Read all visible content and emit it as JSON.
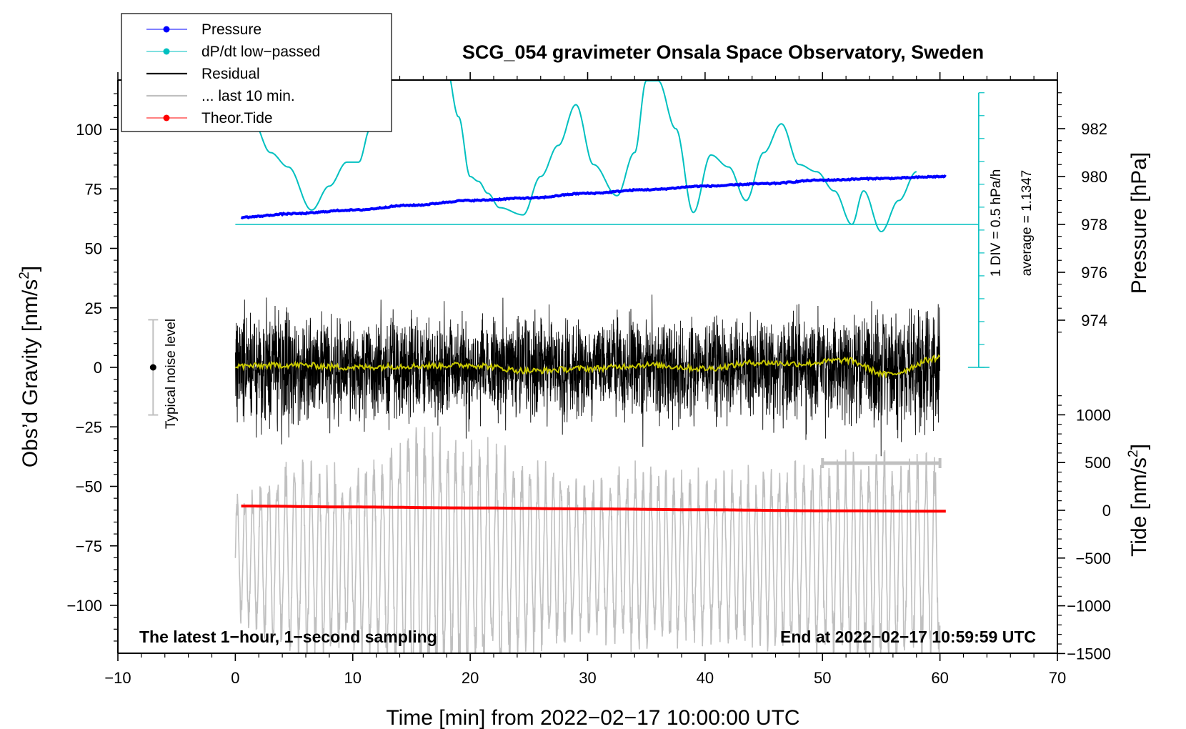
{
  "chart_data": {
    "type": "line",
    "title": "SCG_054 gravimeter Onsala Space Observatory, Sweden",
    "xlabel": "Time [min] from 2022−02−17 10:00:00 UTC",
    "xlim": [
      -10,
      70
    ],
    "x_ticks": [
      -10,
      0,
      10,
      20,
      30,
      40,
      50,
      60,
      70
    ],
    "x_tick_labels": [
      "−10",
      "0",
      "10",
      "20",
      "30",
      "40",
      "50",
      "60",
      "70"
    ],
    "left_axis": {
      "label_main": "Obs’d Gravity [nm/s",
      "label_sup": "2",
      "label_end": "]",
      "ylim": [
        -120,
        120
      ],
      "ticks": [
        100,
        75,
        50,
        25,
        0,
        -25,
        -50,
        -75,
        -100
      ],
      "tick_labels": [
        "100",
        "75",
        "50",
        "25",
        "0",
        "−25",
        "−50",
        "−75",
        "−100"
      ]
    },
    "pressure_axis": {
      "label": "Pressure [hPa]",
      "ticks": [
        982,
        980,
        978,
        976,
        974
      ],
      "tick_labels": [
        "982",
        "980",
        "978",
        "976",
        "974"
      ]
    },
    "tide_axis": {
      "label_main": "Tide [nm/s",
      "label_sup": "2",
      "label_end": "]",
      "ticks": [
        1000,
        500,
        0,
        -500,
        -1000,
        -1500
      ],
      "tick_labels": [
        "1000",
        "500",
        "0",
        "−500",
        "−1000",
        "−1500"
      ]
    },
    "legend": {
      "position": "top-left",
      "entries": [
        {
          "label": "Pressure",
          "color": "#0000ff",
          "style": "line-dot"
        },
        {
          "label": "dP/dt low−passed",
          "color": "#00c0c0",
          "style": "line-dot"
        },
        {
          "label": "Residual",
          "color": "#000000",
          "style": "line"
        },
        {
          "label": "... last 10 min.",
          "color": "#c0c0c0",
          "style": "line"
        },
        {
          "label": "Theor.Tide",
          "color": "#ff0000",
          "style": "line-dot"
        }
      ]
    },
    "series": [
      {
        "name": "Pressure",
        "axis": "pressure",
        "color": "#0000ff",
        "x": [
          0.5,
          5,
          10,
          15,
          20,
          25,
          30,
          35,
          40,
          45,
          50,
          55,
          60.5
        ],
        "values": [
          978.3,
          978.45,
          978.6,
          978.8,
          979.0,
          979.1,
          979.3,
          979.45,
          979.6,
          979.7,
          979.85,
          979.92,
          980.0
        ]
      },
      {
        "name": "dP/dt low−passed",
        "axis": "pressure",
        "color": "#00c0c0",
        "x": [
          0.5,
          1.5,
          3,
          4.5,
          6.5,
          8,
          9.5,
          10.5,
          11.5,
          12.5,
          13,
          14.3,
          15,
          16.5,
          18,
          19,
          20,
          20.7,
          21.5,
          22.5,
          24.5,
          26,
          27.5,
          29,
          30.5,
          32.5,
          34,
          35,
          36,
          37.5,
          39,
          40.5,
          42,
          43.5,
          45,
          46.5,
          48,
          49.5,
          51,
          52.5,
          53.5,
          55,
          56.5,
          58
        ],
        "values": [
          983.5,
          982.3,
          981.0,
          980.4,
          978.6,
          979.6,
          980.6,
          980.6,
          982.0,
          982.8,
          984.3,
          986.4,
          984.6,
          985.0,
          984.5,
          982.5,
          980.0,
          979.8,
          979.3,
          978.7,
          978.4,
          980.0,
          981.3,
          983.0,
          980.5,
          979.2,
          981.0,
          984.0,
          984.0,
          982.0,
          978.5,
          980.9,
          980.4,
          979.0,
          981.0,
          982.2,
          980.5,
          980.2,
          979.4,
          978.0,
          979.4,
          977.7,
          979.0,
          980.2
        ]
      },
      {
        "name": "Residual",
        "axis": "gravity",
        "color": "#000000",
        "amplitude_envelope": [
          38,
          40,
          32,
          35,
          34,
          30,
          33,
          32,
          34,
          31,
          30,
          38,
          30,
          32,
          36,
          36,
          38,
          40,
          42
        ]
      },
      {
        "name": "Residual smoothed",
        "axis": "gravity",
        "color": "#c8c800",
        "x": [
          0,
          5,
          10,
          15,
          20,
          25,
          30,
          35,
          40,
          44.5,
          48,
          52,
          55.5,
          60
        ],
        "values": [
          0.5,
          1.0,
          0.0,
          0.6,
          1.0,
          -1.5,
          -0.5,
          1.0,
          -0.5,
          2.0,
          1.5,
          3.0,
          -3.0,
          4.0
        ]
      },
      {
        "name": "... last 10 min.",
        "axis": "tide",
        "color": "#c0c0c0",
        "x": [
          0,
          60
        ],
        "values": [
          -500,
          -500
        ],
        "amplitude_envelope": [
          700,
          1150,
          1000,
          1500,
          1400,
          1100,
          900,
          1050,
          950,
          1000,
          1100,
          1200,
          1150
        ]
      },
      {
        "name": "Theor.Tide",
        "axis": "tide",
        "color": "#ff0000",
        "x": [
          0.5,
          10,
          20,
          30,
          40,
          50,
          60.5
        ],
        "values": [
          45,
          35,
          25,
          15,
          5,
          -5,
          -10
        ]
      }
    ],
    "annotations": {
      "bottom_left": "The latest 1−hour, 1−second sampling",
      "bottom_right": "End at 2022−02−17 10:59:59 UTC",
      "noise_label": "Typical noise level",
      "noise_range": [
        -20,
        20
      ],
      "div_label": "1 DIV = 0.5 hPa/h",
      "average_label": "average = 1.1347",
      "dpdt_baseline": 978,
      "scale_bar_x": [
        50,
        60
      ]
    },
    "grid": false
  }
}
